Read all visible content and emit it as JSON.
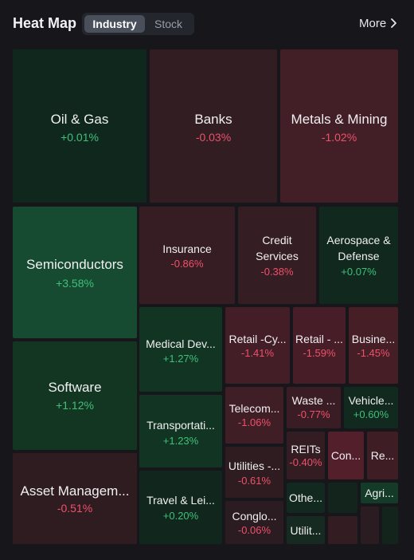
{
  "header": {
    "title": "Heat Map",
    "tabs": [
      {
        "label": "Industry",
        "active": true
      },
      {
        "label": "Stock",
        "active": false
      }
    ],
    "more_label": "More"
  },
  "colors": {
    "background": "#16161b",
    "positive_text": "#3fc07a",
    "negative_text": "#f0506a"
  },
  "tiles": [
    {
      "name": "Oil & Gas",
      "change": "+0.01%"
    },
    {
      "name": "Banks",
      "change": "-0.03%"
    },
    {
      "name": "Metals & Mining",
      "change": "-1.02%"
    },
    {
      "name": "Semiconductors",
      "change": "+3.58%"
    },
    {
      "name": "Insurance",
      "change": "-0.86%"
    },
    {
      "name": "Credit Services",
      "name_line1": "Credit",
      "name_line2": "Services",
      "change": "-0.38%"
    },
    {
      "name": "Aerospace & Defense",
      "name_line1": "Aerospace &",
      "name_line2": "Defense",
      "change": "+0.07%"
    },
    {
      "name": "Software",
      "change": "+1.12%"
    },
    {
      "name": "Medical Dev...",
      "change": "+1.27%"
    },
    {
      "name": "Retail -Cy...",
      "change": "-1.41%"
    },
    {
      "name": "Retail - ...",
      "change": "-1.59%"
    },
    {
      "name": "Busine...",
      "change": "-1.45%"
    },
    {
      "name": "Transportati...",
      "change": "+1.23%"
    },
    {
      "name": "Telecom...",
      "change": "-1.06%"
    },
    {
      "name": "Waste ...",
      "change": "-0.77%"
    },
    {
      "name": "Vehicle...",
      "change": "+0.60%"
    },
    {
      "name": "REITs",
      "change": "-0.40%"
    },
    {
      "name": "Con...",
      "change": ""
    },
    {
      "name": "Re...",
      "change": ""
    },
    {
      "name": "Utilities -...",
      "change": "-0.61%"
    },
    {
      "name": "Asset Managem...",
      "change": "-0.51%"
    },
    {
      "name": "Travel & Lei...",
      "change": "+0.20%"
    },
    {
      "name": "Conglo...",
      "change": "-0.06%"
    },
    {
      "name": "Othe...",
      "change": ""
    },
    {
      "name": "Agri...",
      "change": ""
    },
    {
      "name": "Utilit...",
      "change": ""
    }
  ]
}
